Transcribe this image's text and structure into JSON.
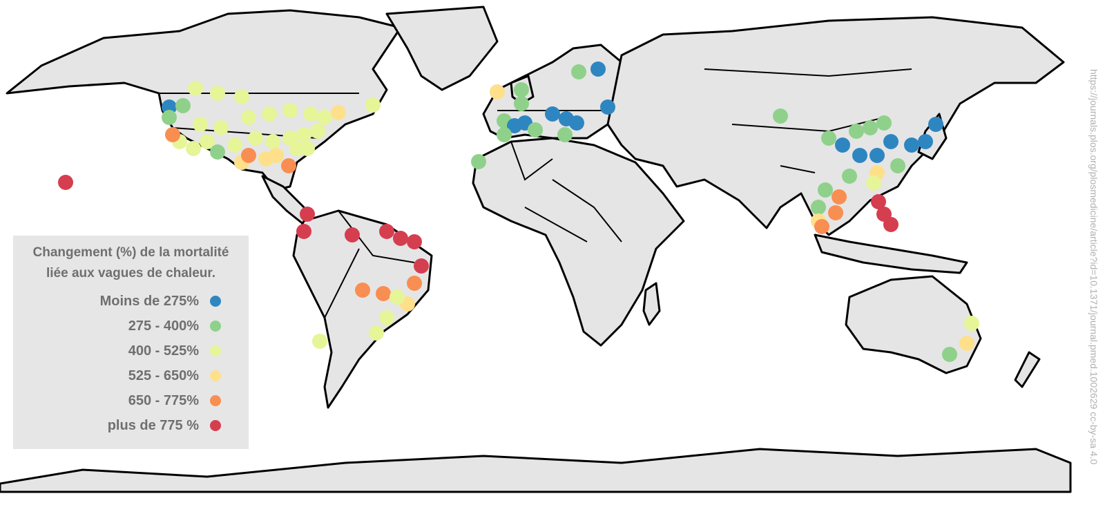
{
  "legend": {
    "title_line1": "Changement (%) de la mortalité",
    "title_line2": "liée aux vagues de chaleur.",
    "items": [
      {
        "label": "Moins de 275%",
        "color": "#2e86c1"
      },
      {
        "label": "275 - 400%",
        "color": "#8fd18b"
      },
      {
        "label": "400 - 525%",
        "color": "#e6f598"
      },
      {
        "label": "525 - 650%",
        "color": "#fee08b"
      },
      {
        "label": "650 - 775%",
        "color": "#f98e52"
      },
      {
        "label": "plus de 775 %",
        "color": "#d53e4f"
      }
    ]
  },
  "credit": "https://journals.plos.org/plosmedicine/article?id=10.1371/journal.pmed.1002629 cc-by-sa 4.0",
  "colors": {
    "land": "#e5e5e5",
    "ocean": "#ffffff",
    "legend_bg": "#e6e6e6"
  }
}
